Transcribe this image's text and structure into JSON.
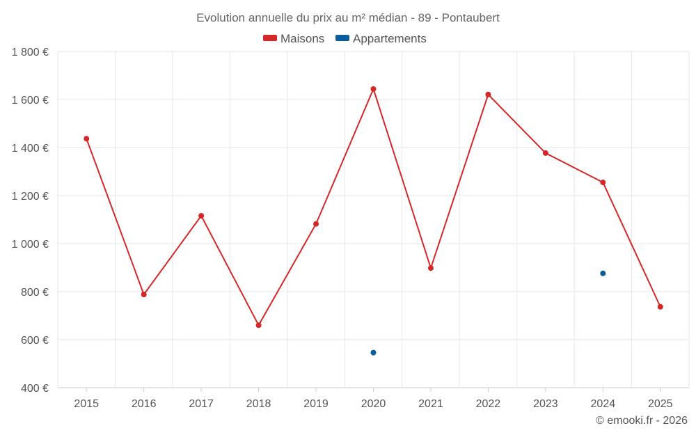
{
  "chart_data": {
    "type": "line",
    "title": "Evolution annuelle du prix au m² médian - 89 - Pontaubert",
    "categories": [
      "2015",
      "2016",
      "2017",
      "2018",
      "2019",
      "2020",
      "2021",
      "2022",
      "2023",
      "2024",
      "2025"
    ],
    "yticks": [
      "400 €",
      "600 €",
      "800 €",
      "1 000 €",
      "1 200 €",
      "1 400 €",
      "1 600 €",
      "1 800 €"
    ],
    "ylim": [
      400,
      1800
    ],
    "grid": true,
    "legend_position": "top-center",
    "series": [
      {
        "name": "Maisons",
        "color": "#d62728",
        "mode": "line+markers",
        "values": [
          1437,
          788,
          1116,
          660,
          1082,
          1644,
          898,
          1621,
          1377,
          1255,
          737
        ]
      },
      {
        "name": "Appartements",
        "color": "#0b5d99",
        "mode": "markers",
        "values": [
          null,
          null,
          null,
          null,
          null,
          546,
          null,
          null,
          null,
          876,
          null
        ]
      }
    ]
  },
  "credit": "© emooki.fr - 2026"
}
